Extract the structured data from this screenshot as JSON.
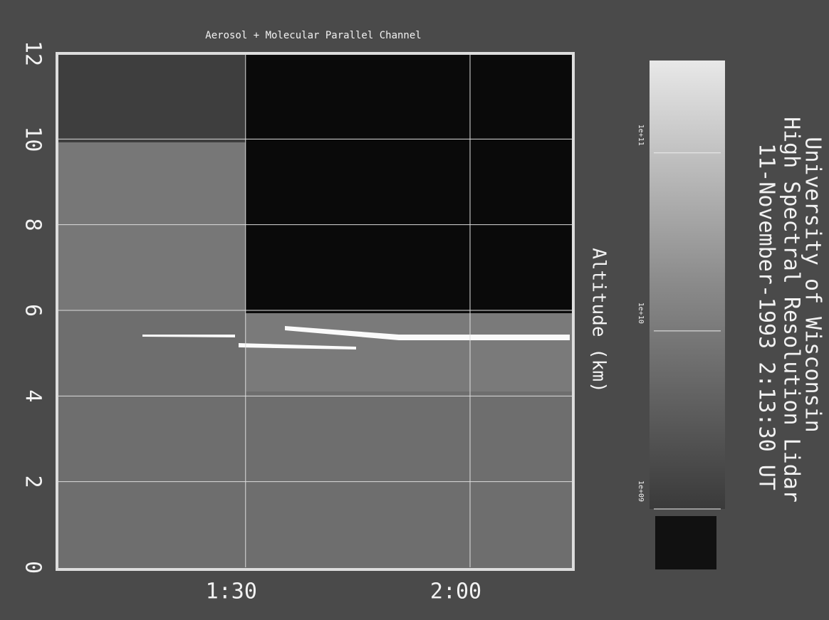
{
  "chart_data": {
    "type": "heatmap",
    "title": "Aerosol + Molecular Parallel Channel",
    "y_label": "Altitude (km)",
    "header": [
      "University of Wisconsin",
      "High Spectral Resolution Lidar",
      "11-November-1993 2:13:30 UT"
    ],
    "xlim": [
      64.8,
      133.8
    ],
    "xticks": [
      {
        "value": 90,
        "label": "1:30"
      },
      {
        "value": 120,
        "label": "2:00"
      }
    ],
    "ylim": [
      0,
      12
    ],
    "yticks": [
      0,
      2,
      4,
      6,
      8,
      10,
      12
    ],
    "grid": true,
    "colorbar": {
      "log": true,
      "lim": [
        1000000000,
        330000000000
      ],
      "ticks": [
        {
          "value": 1000000000,
          "label": "1e+09"
        },
        {
          "value": 10000000000,
          "label": "1e+10"
        },
        {
          "value": 100000000000,
          "label": "1e+11"
        }
      ]
    }
  }
}
